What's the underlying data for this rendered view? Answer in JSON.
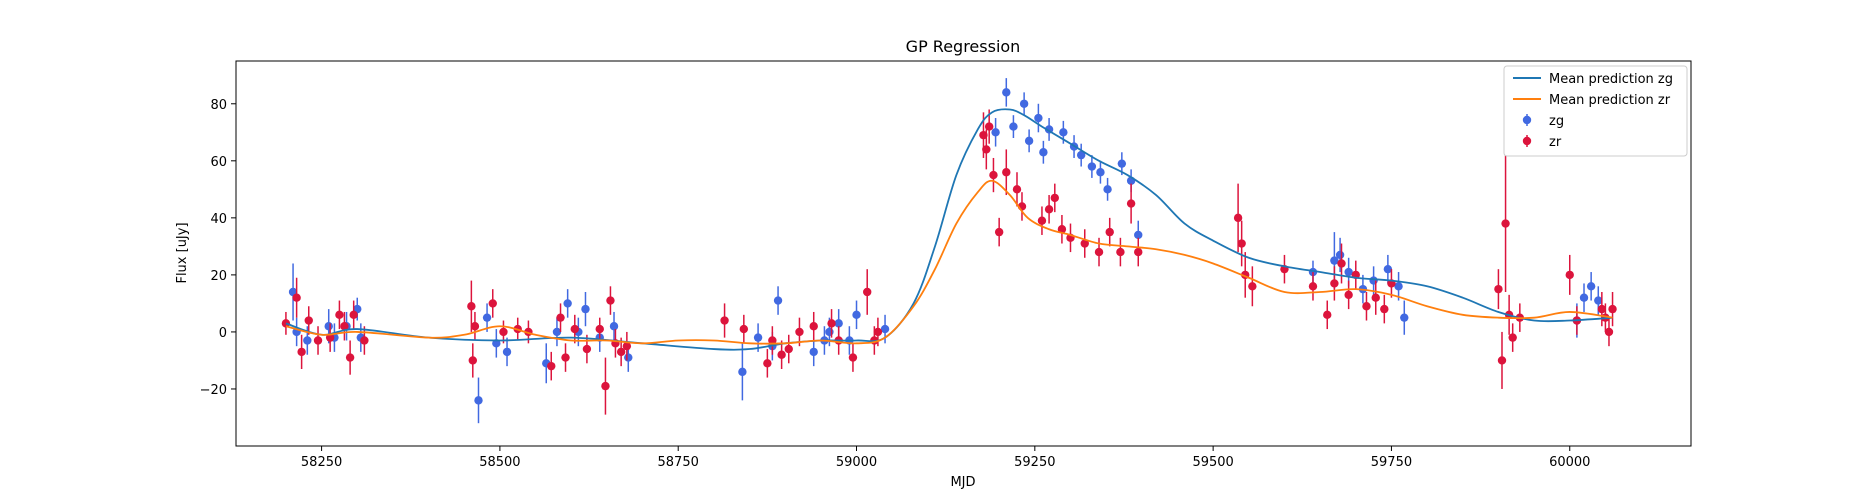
{
  "chart_data": {
    "type": "scatter",
    "title": "GP Regression",
    "xlabel": "MJD",
    "ylabel": "Flux [uJy]",
    "xlim": [
      58130,
      60170
    ],
    "ylim": [
      -40,
      95
    ],
    "xticks": [
      58250,
      58500,
      58750,
      59000,
      59250,
      59500,
      59750,
      60000
    ],
    "yticks": [
      -20,
      0,
      20,
      40,
      60,
      80
    ],
    "grid": false,
    "legend_position": "top-right",
    "series": [
      {
        "name": "Mean prediction zg",
        "kind": "line",
        "color": "#1f77b4",
        "x": [
          58200,
          58250,
          58300,
          58400,
          58500,
          58600,
          58700,
          58800,
          58850,
          58900,
          58950,
          59000,
          59040,
          59080,
          59110,
          59140,
          59170,
          59190,
          59215,
          59235,
          59260,
          59300,
          59340,
          59380,
          59420,
          59460,
          59500,
          59550,
          59600,
          59650,
          59700,
          59750,
          59800,
          59850,
          59900,
          59950,
          60000,
          60060
        ],
        "y": [
          3,
          -1,
          1,
          -2,
          -3,
          -2,
          -4,
          -6,
          -6,
          -4,
          -3,
          -3,
          -2,
          10,
          30,
          55,
          71,
          77,
          78,
          76,
          72,
          66,
          60,
          55,
          48,
          38,
          32,
          26,
          23,
          21,
          19,
          18,
          16,
          12,
          7,
          4,
          4,
          5
        ]
      },
      {
        "name": "Mean prediction zr",
        "kind": "line",
        "color": "#ff7f0e",
        "x": [
          58200,
          58250,
          58300,
          58400,
          58450,
          58500,
          58550,
          58600,
          58650,
          58700,
          58750,
          58800,
          58850,
          58900,
          58950,
          59000,
          59040,
          59080,
          59110,
          59140,
          59170,
          59190,
          59215,
          59240,
          59270,
          59300,
          59340,
          59380,
          59420,
          59460,
          59500,
          59550,
          59600,
          59650,
          59700,
          59750,
          59800,
          59850,
          59900,
          59950,
          60000,
          60060
        ],
        "y": [
          2,
          -1,
          0,
          -2,
          -1,
          2,
          -1,
          -3,
          -3,
          -4,
          -3,
          -3,
          -4,
          -4,
          -3,
          -4,
          -2,
          9,
          22,
          38,
          49,
          53,
          48,
          40,
          36,
          34,
          31,
          30,
          29,
          27,
          24,
          19,
          14,
          14,
          15,
          13,
          9,
          6,
          5,
          5,
          7,
          5
        ]
      },
      {
        "name": "zg",
        "kind": "errorbar",
        "color": "#4169e1",
        "x": [
          58210,
          58215,
          58230,
          58260,
          58268,
          58285,
          58300,
          58305,
          58470,
          58482,
          58495,
          58510,
          58565,
          58580,
          58595,
          58610,
          58620,
          58640,
          58660,
          58680,
          58840,
          58862,
          58882,
          58890,
          58940,
          58955,
          58962,
          58975,
          58990,
          59000,
          59040,
          59195,
          59210,
          59220,
          59235,
          59242,
          59255,
          59262,
          59270,
          59290,
          59305,
          59315,
          59330,
          59342,
          59352,
          59372,
          59385,
          59395,
          59640,
          59670,
          59678,
          59690,
          59710,
          59725,
          59745,
          59760,
          59768,
          60010,
          60020,
          60030,
          60040
        ],
        "y": [
          14,
          0,
          -3,
          2,
          -2,
          2,
          8,
          -2,
          -24,
          5,
          -4,
          -7,
          -11,
          0,
          10,
          0,
          8,
          -2,
          2,
          -9,
          -14,
          -2,
          -5,
          11,
          -7,
          -3,
          0,
          3,
          -3,
          6,
          1,
          70,
          84,
          72,
          80,
          67,
          75,
          63,
          71,
          70,
          65,
          62,
          58,
          56,
          50,
          59,
          53,
          34,
          21,
          25,
          27,
          21,
          15,
          18,
          22,
          16,
          5,
          4,
          12,
          16,
          11
        ],
        "err": [
          10,
          5,
          5,
          6,
          5,
          5,
          4,
          5,
          8,
          5,
          5,
          5,
          7,
          5,
          5,
          5,
          6,
          5,
          5,
          5,
          10,
          5,
          5,
          5,
          5,
          5,
          5,
          5,
          5,
          5,
          5,
          5,
          5,
          4,
          4,
          4,
          5,
          4,
          4,
          4,
          4,
          4,
          4,
          4,
          4,
          4,
          4,
          5,
          4,
          10,
          6,
          5,
          5,
          5,
          5,
          5,
          6,
          6,
          5,
          5,
          5
        ]
      },
      {
        "name": "zr",
        "kind": "errorbar",
        "color": "#dc143c",
        "x": [
          58200,
          58215,
          58222,
          58232,
          58245,
          58262,
          58275,
          58282,
          58290,
          58295,
          58310,
          58460,
          58462,
          58465,
          58490,
          58505,
          58525,
          58540,
          58572,
          58585,
          58592,
          58605,
          58622,
          58640,
          58648,
          58655,
          58662,
          58670,
          58678,
          58815,
          58842,
          58875,
          58882,
          58895,
          58905,
          58920,
          58940,
          58965,
          58975,
          58995,
          59015,
          59025,
          59030,
          59178,
          59182,
          59186,
          59192,
          59200,
          59210,
          59225,
          59232,
          59260,
          59270,
          59278,
          59288,
          59300,
          59320,
          59340,
          59355,
          59370,
          59385,
          59395,
          59535,
          59540,
          59545,
          59555,
          59600,
          59640,
          59660,
          59670,
          59680,
          59690,
          59700,
          59715,
          59728,
          59740,
          59750,
          59900,
          59905,
          59910,
          59915,
          59920,
          59930,
          60000,
          60010,
          60045,
          60050,
          60055,
          60060
        ],
        "y": [
          3,
          12,
          -7,
          4,
          -3,
          -2,
          6,
          2,
          -9,
          6,
          -3,
          9,
          -10,
          2,
          10,
          0,
          1,
          0,
          -12,
          5,
          -9,
          1,
          -6,
          1,
          -19,
          11,
          -4,
          -7,
          -5,
          4,
          1,
          -11,
          -3,
          -8,
          -6,
          0,
          2,
          3,
          -3,
          -9,
          14,
          -3,
          0,
          69,
          64,
          72,
          55,
          35,
          56,
          50,
          44,
          39,
          43,
          47,
          36,
          33,
          31,
          28,
          35,
          28,
          45,
          28,
          40,
          31,
          20,
          16,
          22,
          16,
          6,
          17,
          24,
          13,
          20,
          9,
          12,
          8,
          17,
          15,
          -10,
          38,
          6,
          -2,
          5,
          20,
          4,
          8,
          5,
          0,
          8
        ],
        "err": [
          4,
          7,
          6,
          5,
          5,
          5,
          5,
          5,
          6,
          5,
          5,
          9,
          6,
          5,
          5,
          4,
          4,
          4,
          5,
          5,
          5,
          5,
          5,
          4,
          10,
          5,
          5,
          5,
          5,
          6,
          5,
          5,
          5,
          5,
          5,
          5,
          5,
          5,
          5,
          5,
          8,
          5,
          5,
          8,
          7,
          6,
          6,
          5,
          8,
          6,
          5,
          5,
          5,
          5,
          5,
          5,
          5,
          5,
          5,
          5,
          7,
          5,
          12,
          8,
          8,
          7,
          5,
          5,
          5,
          6,
          7,
          5,
          5,
          5,
          6,
          5,
          5,
          7,
          10,
          24,
          7,
          5,
          5,
          7,
          5,
          6,
          5,
          5,
          6
        ]
      }
    ]
  }
}
